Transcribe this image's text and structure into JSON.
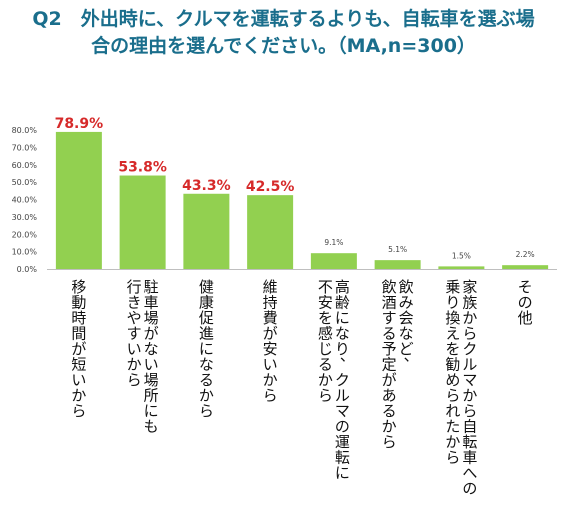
{
  "title": {
    "line1": "Q2　外出時に、クルマを運転するよりも、自転車を選ぶ場",
    "line2": "合の理由を選んでください。（MA,n=300）"
  },
  "chart_data": {
    "type": "bar",
    "categories": [
      [
        "移動時間が短いから"
      ],
      [
        "駐車場がない場所にも",
        "行きやすいから"
      ],
      [
        "健康促進になるから"
      ],
      [
        "維持費が安いから"
      ],
      [
        "高齢になり、クルマの運転に",
        "不安を感じるから"
      ],
      [
        "飲み会など、",
        "飲酒する予定があるから"
      ],
      [
        "家族からクルマから自転車への",
        "乗り換えを勧められたから"
      ],
      [
        "その他"
      ]
    ],
    "values": [
      78.9,
      53.8,
      43.3,
      42.5,
      9.1,
      5.1,
      1.5,
      2.2
    ],
    "value_labels": [
      "78.9%",
      "53.8%",
      "43.3%",
      "42.5%",
      "9.1%",
      "5.1%",
      "1.5%",
      "2.2%"
    ],
    "highlight_count": 4,
    "ylim": [
      0,
      80
    ],
    "yticks": [
      "0.0%",
      "10.0%",
      "20.0%",
      "30.0%",
      "40.0%",
      "50.0%",
      "60.0%",
      "70.0%",
      "80.0%"
    ],
    "bar_color": "#92d050",
    "highlight_label_color": "#d62a2a",
    "grid": false,
    "legend": "none"
  }
}
